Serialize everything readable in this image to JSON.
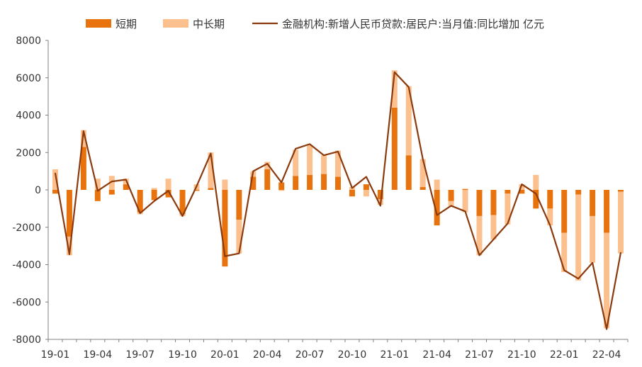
{
  "chart_data": {
    "type": "bar",
    "stacked": true,
    "legend_position": "top",
    "grid": false,
    "ylim": [
      -8000,
      8000
    ],
    "yticks": [
      -8000,
      -6000,
      -4000,
      -2000,
      0,
      2000,
      4000,
      6000,
      8000
    ],
    "x_tick_labels": [
      "19-01",
      "19-04",
      "19-07",
      "19-10",
      "20-01",
      "20-04",
      "20-07",
      "20-10",
      "21-01",
      "21-04",
      "21-07",
      "21-10",
      "22-01",
      "22-04"
    ],
    "categories": [
      "19-01",
      "19-02",
      "19-03",
      "19-04",
      "19-05",
      "19-06",
      "19-07",
      "19-08",
      "19-09",
      "19-10",
      "19-11",
      "19-12",
      "20-01",
      "20-02",
      "20-03",
      "20-04",
      "20-05",
      "20-06",
      "20-07",
      "20-08",
      "20-09",
      "20-10",
      "20-11",
      "20-12",
      "21-01",
      "21-02",
      "21-03",
      "21-04",
      "21-05",
      "21-06",
      "21-07",
      "21-08",
      "21-09",
      "21-10",
      "21-11",
      "21-12",
      "22-01",
      "22-02",
      "22-03",
      "22-04",
      "22-05"
    ],
    "series": [
      {
        "name": "短期",
        "kind": "bar",
        "color": "#E8730E",
        "values": [
          -200,
          -2500,
          2300,
          -600,
          -250,
          300,
          -1200,
          -550,
          -400,
          -1300,
          -50,
          100,
          -4100,
          -1600,
          700,
          1100,
          400,
          750,
          800,
          850,
          700,
          -350,
          300,
          -500,
          4400,
          1850,
          150,
          -1900,
          -600,
          50,
          -1400,
          -1350,
          -200,
          -200,
          -1000,
          -1000,
          -2300,
          -250,
          -1400,
          -2300,
          -100
        ]
      },
      {
        "name": "中长期",
        "kind": "bar",
        "color": "#FBC08E",
        "values": [
          1100,
          -1000,
          900,
          600,
          750,
          300,
          -100,
          100,
          600,
          -100,
          300,
          1900,
          550,
          -1800,
          300,
          400,
          -50,
          1400,
          1600,
          1000,
          1400,
          150,
          -350,
          -300,
          2000,
          3700,
          1500,
          550,
          -300,
          -1200,
          -2100,
          -1300,
          -1650,
          300,
          800,
          -900,
          -2100,
          -4600,
          -2500,
          -5100,
          -3300
        ]
      },
      {
        "name": "金融机构:新增人民币贷款:居民户:当月值:同比增加 亿元",
        "kind": "line",
        "color": "#8B3A0E",
        "values": [
          900,
          -3450,
          3150,
          -50,
          450,
          550,
          -1250,
          -600,
          -50,
          -1400,
          200,
          1950,
          -3550,
          -3400,
          1000,
          1400,
          400,
          2200,
          2450,
          1850,
          2050,
          100,
          700,
          -850,
          6300,
          5500,
          1650,
          -1350,
          -850,
          -1150,
          -3500,
          -2650,
          -1800,
          300,
          -200,
          -1900,
          -4300,
          -4750,
          -3900,
          -7450,
          -3350
        ]
      }
    ]
  }
}
